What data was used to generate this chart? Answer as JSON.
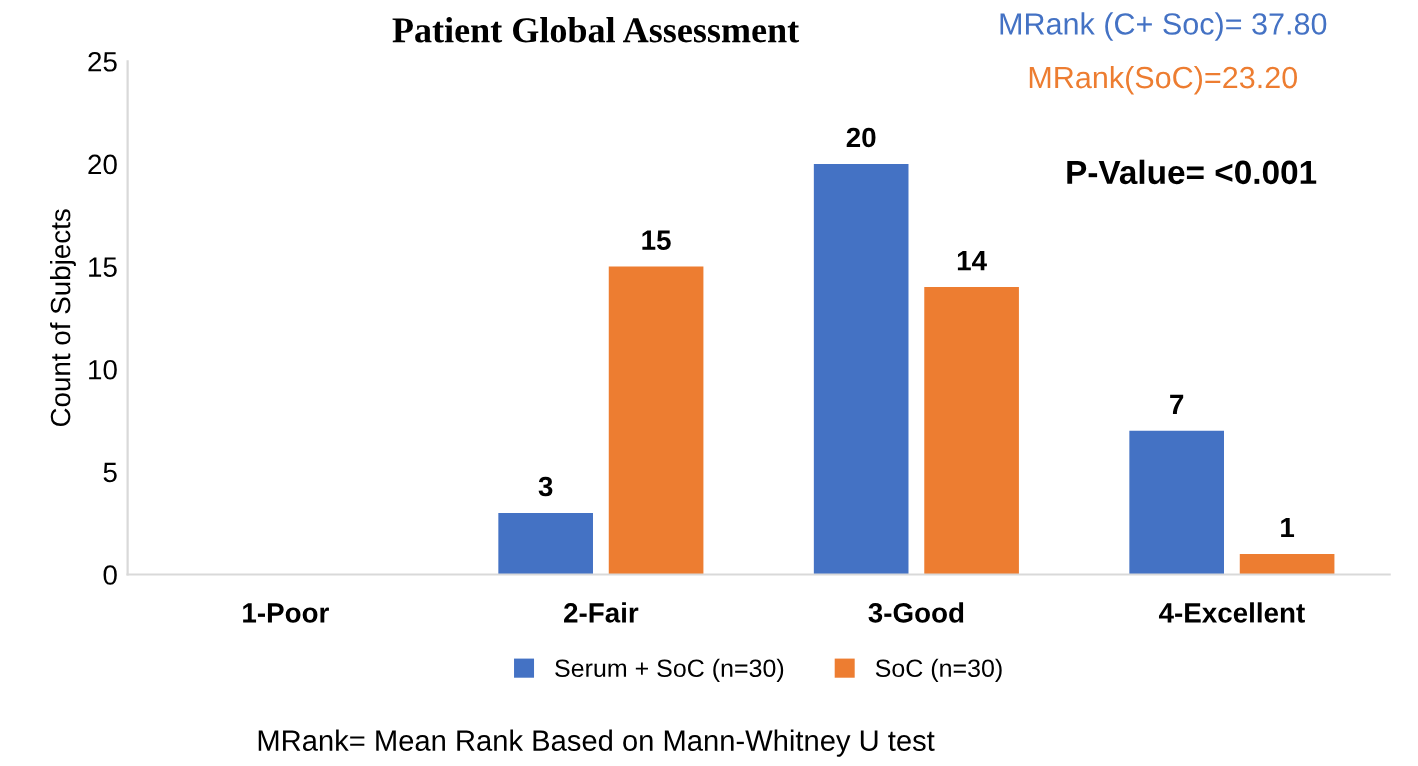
{
  "chart_data": {
    "type": "bar",
    "title": "Patient Global Assessment",
    "ylabel": "Count of Subjects",
    "categories": [
      "1-Poor",
      "2-Fair",
      "3-Good",
      "4-Excellent"
    ],
    "series": [
      {
        "name": "Serum + SoC (n=30)",
        "color": "#4472c4",
        "values": [
          0,
          3,
          20,
          7
        ],
        "value_labels": [
          null,
          "3",
          "20",
          "7"
        ]
      },
      {
        "name": "SoC (n=30)",
        "color": "#ed7d31",
        "values": [
          0,
          15,
          14,
          1
        ],
        "value_labels": [
          null,
          "15",
          "14",
          "1"
        ]
      }
    ],
    "ylim": [
      0,
      25
    ],
    "yticks": [
      0,
      5,
      10,
      15,
      20,
      25
    ],
    "grid": false,
    "legend": "bottom",
    "annotations": [
      "MRank (C+ Soc)= 37.80",
      "MRank(SoC)=23.20",
      "P-Value= <0.001",
      "MRank= Mean Rank Based on Mann-Whitney U test"
    ]
  }
}
